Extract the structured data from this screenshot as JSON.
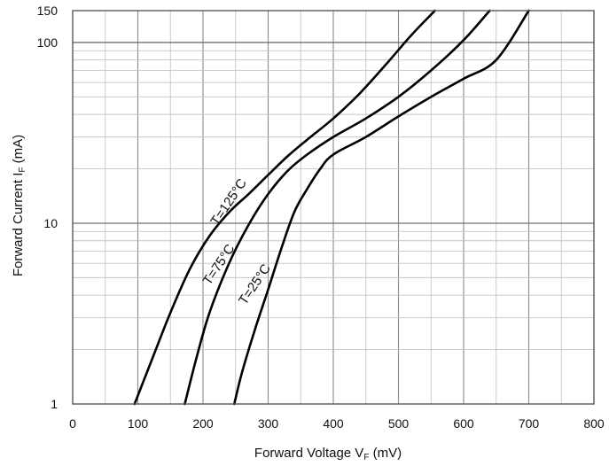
{
  "chart_data": {
    "type": "line",
    "title": "",
    "xlabel": {
      "main": "Forward Voltage V",
      "sub": "F",
      "unit": " (mV)"
    },
    "ylabel": {
      "main": "Forward Current I",
      "sub": "F",
      "unit": " (mA)"
    },
    "xlim": [
      0,
      800
    ],
    "ylim": [
      1,
      150
    ],
    "yscale": "log",
    "grid": true,
    "x_ticks": [
      "0",
      "100",
      "200",
      "300",
      "400",
      "500",
      "600",
      "700",
      "800"
    ],
    "y_ticks": [
      "1",
      "10",
      "100",
      "150"
    ],
    "series": [
      {
        "name": "T=125°C",
        "label_at": [
          222,
          9.6
        ],
        "x": [
          95,
          120,
          150,
          180,
          210,
          240,
          270,
          300,
          330,
          360,
          400,
          440,
          480,
          520,
          556
        ],
        "y": [
          1,
          1.7,
          3.2,
          5.6,
          8.5,
          11.5,
          14.5,
          18.5,
          23.5,
          29,
          38,
          52,
          75,
          110,
          150
        ]
      },
      {
        "name": "T=75°C",
        "label_at": [
          210,
          4.5
        ],
        "x": [
          172,
          190,
          210,
          240,
          270,
          300,
          330,
          360,
          400,
          450,
          500,
          550,
          600,
          640
        ],
        "y": [
          1,
          1.8,
          3.2,
          6,
          9.8,
          14.5,
          19.5,
          24,
          30,
          38,
          50,
          70,
          103,
          150
        ]
      },
      {
        "name": "T=25°C",
        "label_at": [
          265,
          3.5
        ],
        "x": [
          248,
          260,
          280,
          300,
          320,
          340,
          360,
          380,
          400,
          450,
          500,
          550,
          600,
          650,
          700
        ],
        "y": [
          1,
          1.5,
          2.6,
          4.3,
          7.2,
          11.5,
          15.5,
          20,
          24,
          30,
          39,
          50,
          63,
          80,
          150
        ]
      }
    ]
  }
}
